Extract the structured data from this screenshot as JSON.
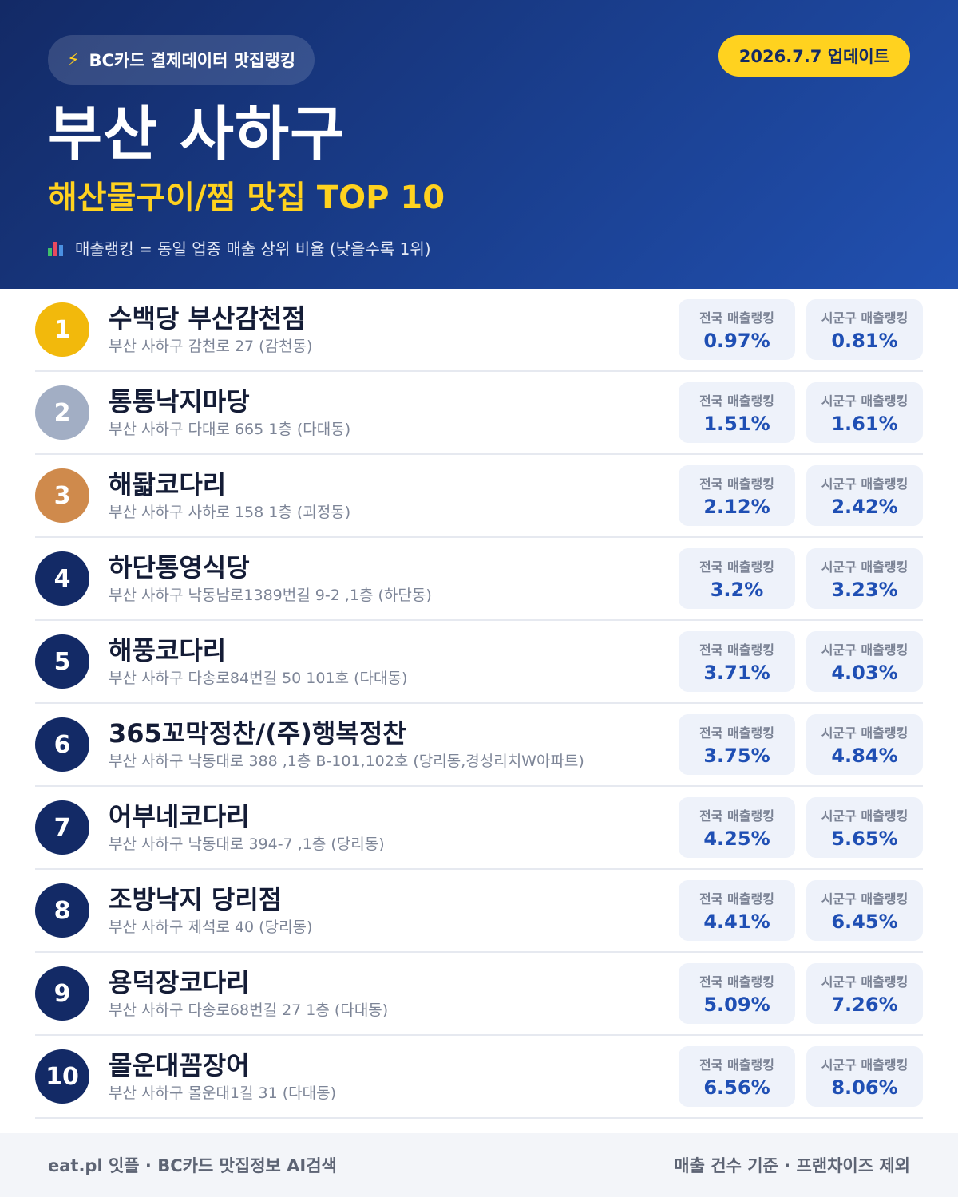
{
  "header": {
    "source_label": "BC카드 결제데이터 맛집랭킹",
    "source_icon": "lightning-icon",
    "update_label": "2026.7.7 업데이트",
    "city_title": "부산 사하구",
    "category_title": "해산물구이/찜 맛집 TOP 10",
    "note_icon": "bar-chart-icon",
    "note": "매출랭킹 = 동일 업종 매출 상위 비율 (낮을수록 1위)"
  },
  "badge_labels": {
    "national": "전국 매출랭킹",
    "district": "시군구 매출랭킹"
  },
  "restaurants": [
    {
      "rank": "1",
      "name": "수백당 부산감천점",
      "address": "부산 사하구 감천로 27 (감천동)",
      "national": "0.97%",
      "district": "0.81%"
    },
    {
      "rank": "2",
      "name": "통통낙지마당",
      "address": "부산 사하구 다대로 665 1층 (다대동)",
      "national": "1.51%",
      "district": "1.61%"
    },
    {
      "rank": "3",
      "name": "해돫코다리",
      "address": "부산 사하구 사하로 158 1층 (괴정동)",
      "national": "2.12%",
      "district": "2.42%"
    },
    {
      "rank": "4",
      "name": "하단통영식당",
      "address": "부산 사하구 낙동남로1389번길 9-2 ,1층 (하단동)",
      "national": "3.2%",
      "district": "3.23%"
    },
    {
      "rank": "5",
      "name": "해풍코다리",
      "address": "부산 사하구 다송로84번길 50 101호 (다대동)",
      "national": "3.71%",
      "district": "4.03%"
    },
    {
      "rank": "6",
      "name": "365꼬막정찬/(주)행복정찬",
      "address": "부산 사하구 낙동대로 388 ,1층 B-101,102호 (당리동,경성리치W아파트)",
      "national": "3.75%",
      "district": "4.84%"
    },
    {
      "rank": "7",
      "name": "어부네코다리",
      "address": "부산 사하구 낙동대로 394-7 ,1층 (당리동)",
      "national": "4.25%",
      "district": "5.65%"
    },
    {
      "rank": "8",
      "name": "조방낙지 당리점",
      "address": "부산 사하구 제석로 40 (당리동)",
      "national": "4.41%",
      "district": "6.45%"
    },
    {
      "rank": "9",
      "name": "용덕장코다리",
      "address": "부산 사하구 다송로68번길 27 1층 (다대동)",
      "national": "5.09%",
      "district": "7.26%"
    },
    {
      "rank": "10",
      "name": "몰운대꼼장어",
      "address": "부산 사하구 몰운대1길 31 (다대동)",
      "national": "6.56%",
      "district": "8.06%"
    }
  ],
  "footer": {
    "left": "eat.pl 잇플 · BC카드 맛집정보 AI검색",
    "right": "매출 건수 기준 · 프랜차이즈 제외"
  },
  "colors": {
    "header_bg": "#1a3f8f",
    "accent_yellow": "#ffd21f",
    "gold": "#f2b90c",
    "silver": "#a2aec4",
    "bronze": "#cf8a4c",
    "rank_navy": "#132a66",
    "badge_value": "#1f4fb4"
  }
}
